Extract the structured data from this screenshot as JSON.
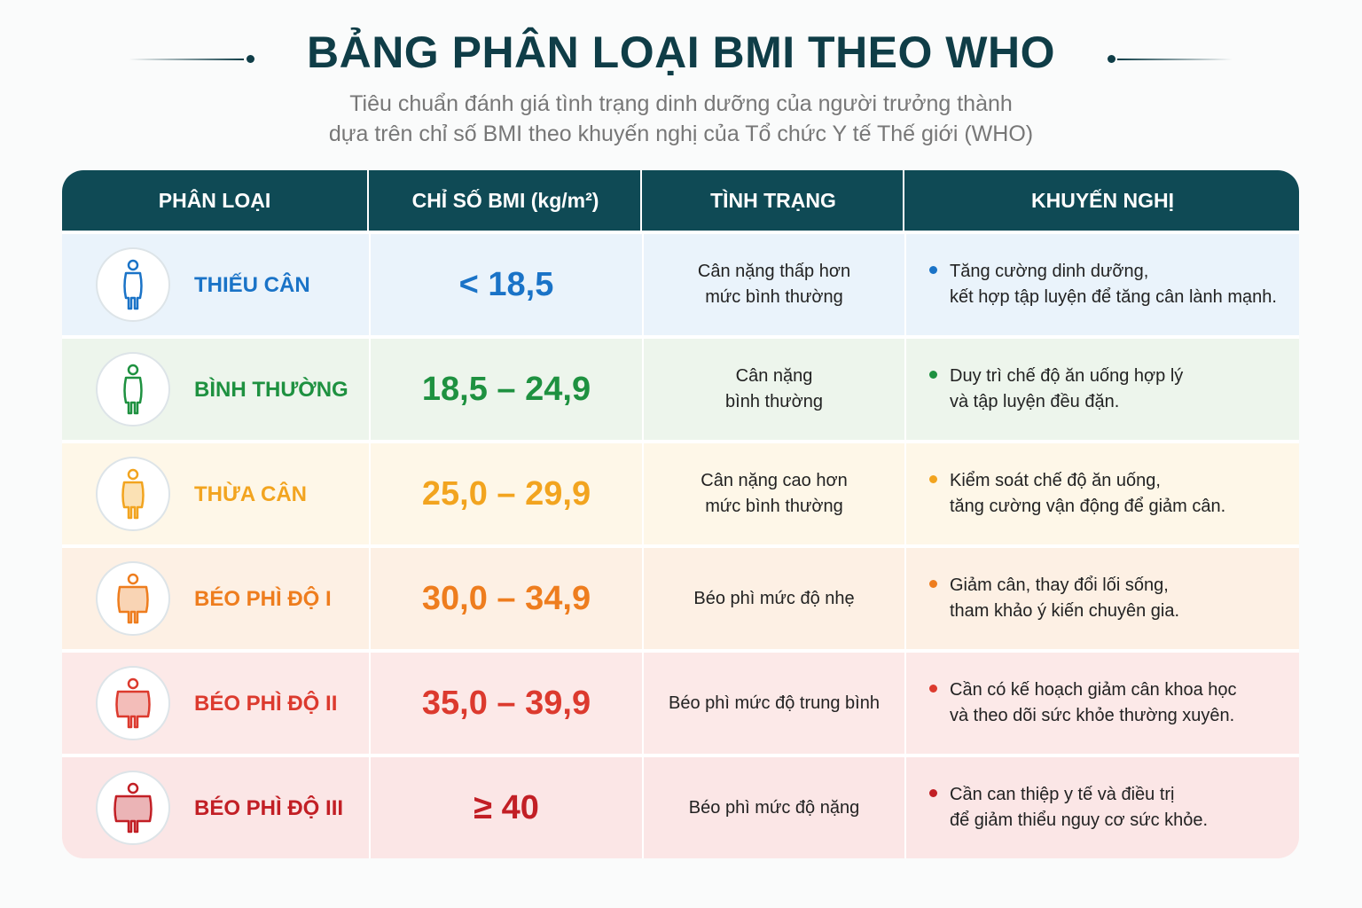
{
  "header": {
    "title": "BẢNG PHÂN LOẠI BMI THEO WHO",
    "subtitle": [
      "Tiêu chuẩn đánh giá tình trạng dinh dưỡng của người trưởng thành",
      "dựa trên chỉ số BMI theo khuyến nghị của Tổ chức Y tế Thế giới (WHO)"
    ]
  },
  "table": {
    "headers": [
      "PHÂN LOẠI",
      "CHỈ SỐ BMI (kg/m²)",
      "TÌNH TRẠNG",
      "KHUYẾN NGHỊ"
    ],
    "rows": [
      {
        "category": "THIẾU CÂN",
        "bmi": "< 18,5",
        "status": [
          "Cân nặng thấp hơn",
          "mức bình thường"
        ],
        "recommendation": [
          "Tăng cường dinh dưỡng,",
          "kết hợp tập luyện để tăng cân lành mạnh."
        ]
      },
      {
        "category": "BÌNH THƯỜNG",
        "bmi": "18,5 – 24,9",
        "status": [
          "Cân nặng",
          "bình thường"
        ],
        "recommendation": [
          "Duy trì chế độ ăn uống hợp lý",
          "và tập luyện đều đặn."
        ]
      },
      {
        "category": "THỪA CÂN",
        "bmi": "25,0 – 29,9",
        "status": [
          "Cân nặng cao hơn",
          "mức bình thường"
        ],
        "recommendation": [
          "Kiểm soát chế độ ăn uống,",
          "tăng cường vận động để giảm cân."
        ]
      },
      {
        "category": "BÉO PHÌ ĐỘ I",
        "bmi": "30,0 – 34,9",
        "status": [
          "Béo phì mức độ nhẹ"
        ],
        "recommendation": [
          "Giảm cân, thay đổi lối sống,",
          "tham khảo ý kiến chuyên gia."
        ]
      },
      {
        "category": "BÉO PHÌ ĐỘ II",
        "bmi": "35,0 – 39,9",
        "status": [
          "Béo phì mức độ trung bình"
        ],
        "recommendation": [
          "Cần có kế hoạch giảm cân khoa học",
          "và theo dõi sức khỏe thường xuyên."
        ]
      },
      {
        "category": "BÉO PHÌ ĐỘ III",
        "bmi": "≥ 40",
        "status": [
          "Béo phì mức độ nặng"
        ],
        "recommendation": [
          "Cần can thiệp y tế và điều trị",
          "để giảm thiểu nguy cơ sức khỏe."
        ]
      }
    ]
  }
}
